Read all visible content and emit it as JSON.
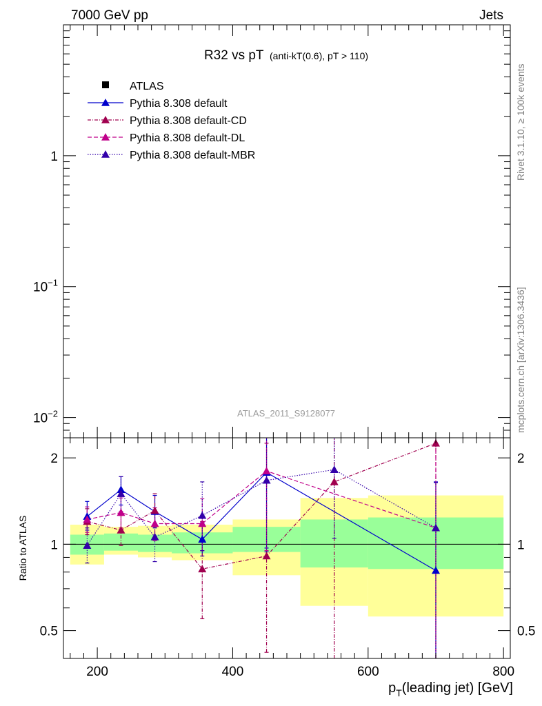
{
  "header": {
    "left": "7000 GeV pp",
    "right": "Jets"
  },
  "side_labels": {
    "top": "Rivet 3.1.10, ≥ 100k events",
    "bottom": "mcplots.cern.ch [arXiv:1306.3436]"
  },
  "watermark": "ATLAS_2011_S9128077",
  "chart_data": {
    "type": "line",
    "title": "R32 vs pT",
    "subtitle": "(anti-kT(0.6), pT > 110)",
    "xlabel": "pT(leading jet) [GeV]",
    "xlim": [
      150,
      810
    ],
    "x_ticks": [
      200,
      400,
      600,
      800
    ],
    "main_panel": {
      "ylim": [
        0.007,
        10
      ],
      "yscale": "log",
      "y_tick_labels": [
        "1",
        "10−1",
        "10−2"
      ]
    },
    "ratio_panel": {
      "ylabel": "Ratio to ATLAS",
      "ylim": [
        0.4,
        2.35
      ],
      "yscale": "log",
      "y_ticks": [
        0.5,
        1,
        2
      ],
      "y_tick_labels": [
        "0.5",
        "1",
        "2"
      ]
    },
    "bins": [
      {
        "lo": 160,
        "hi": 210,
        "x": 185
      },
      {
        "lo": 210,
        "hi": 260,
        "x": 235
      },
      {
        "lo": 260,
        "hi": 310,
        "x": 285
      },
      {
        "lo": 310,
        "hi": 400,
        "x": 355
      },
      {
        "lo": 400,
        "hi": 500,
        "x": 450
      },
      {
        "lo": 500,
        "hi": 600,
        "x": 550
      },
      {
        "lo": 600,
        "hi": 800,
        "x": 700
      }
    ],
    "bands": {
      "inner": [
        [
          0.92,
          1.08
        ],
        [
          0.95,
          1.09
        ],
        [
          0.94,
          1.08
        ],
        [
          0.93,
          1.1
        ],
        [
          0.94,
          1.15
        ],
        [
          0.83,
          1.22
        ],
        [
          0.82,
          1.24
        ]
      ],
      "outer": [
        [
          0.85,
          1.17
        ],
        [
          0.92,
          1.15
        ],
        [
          0.9,
          1.16
        ],
        [
          0.88,
          1.17
        ],
        [
          0.78,
          1.22
        ],
        [
          0.61,
          1.45
        ],
        [
          0.56,
          1.48
        ]
      ]
    },
    "series": [
      {
        "name": "Pythia 8.308 default",
        "color": "#0000cc",
        "dash": "",
        "x": [
          185,
          235,
          285,
          355,
          450,
          700
        ],
        "y": [
          1.25,
          1.55,
          1.3,
          1.04,
          1.78,
          0.81
        ],
        "err": [
          [
            1.12,
            1.41
          ],
          [
            1.37,
            1.72
          ],
          [
            1.14,
            1.48
          ],
          [
            0.91,
            1.19
          ],
          [
            0.97,
            2.35
          ],
          [
            0.32,
            1.65
          ]
        ]
      },
      {
        "name": "Pythia 8.308 default-CD",
        "color": "#a0004f",
        "dash": "5,2,1,2",
        "x": [
          185,
          235,
          285,
          355,
          450,
          550,
          700
        ],
        "y": [
          1.2,
          1.12,
          1.31,
          0.82,
          0.91,
          1.65,
          2.25
        ],
        "err": [
          [
            1.08,
            1.33
          ],
          [
            0.99,
            1.26
          ],
          [
            1.15,
            1.5
          ],
          [
            0.55,
            1.2
          ],
          [
            0.42,
            2.25
          ],
          [
            0.4,
            2.35
          ],
          [
            0.32,
            2.35
          ]
        ]
      },
      {
        "name": "Pythia 8.308 default-DL",
        "color": "#c0008a",
        "dash": "6,3",
        "x": [
          185,
          235,
          285,
          355,
          450,
          700
        ],
        "y": [
          1.22,
          1.29,
          1.18,
          1.18,
          1.8,
          1.14
        ],
        "err": [
          [
            1.1,
            1.35
          ],
          [
            1.14,
            1.45
          ],
          [
            1.03,
            1.34
          ],
          [
            0.95,
            1.44
          ],
          [
            0.95,
            2.35
          ],
          [
            0.32,
            2.35
          ]
        ]
      },
      {
        "name": "Pythia 8.308 default-MBR",
        "color": "#3300aa",
        "dash": "1.5,2",
        "x": [
          185,
          235,
          285,
          355,
          450,
          550,
          700
        ],
        "y": [
          0.99,
          1.5,
          1.06,
          1.26,
          1.67,
          1.82,
          1.14
        ],
        "err": [
          [
            0.86,
            1.14
          ],
          [
            1.3,
            1.72
          ],
          [
            0.87,
            1.29
          ],
          [
            0.95,
            1.65
          ],
          [
            0.94,
            2.35
          ],
          [
            1.05,
            2.35
          ],
          [
            0.32,
            1.64
          ]
        ]
      }
    ],
    "legend": {
      "placement": "top-left",
      "entries": [
        "ATLAS",
        "Pythia 8.308 default",
        "Pythia 8.308 default-CD",
        "Pythia 8.308 default-DL",
        "Pythia 8.308 default-MBR"
      ]
    }
  }
}
